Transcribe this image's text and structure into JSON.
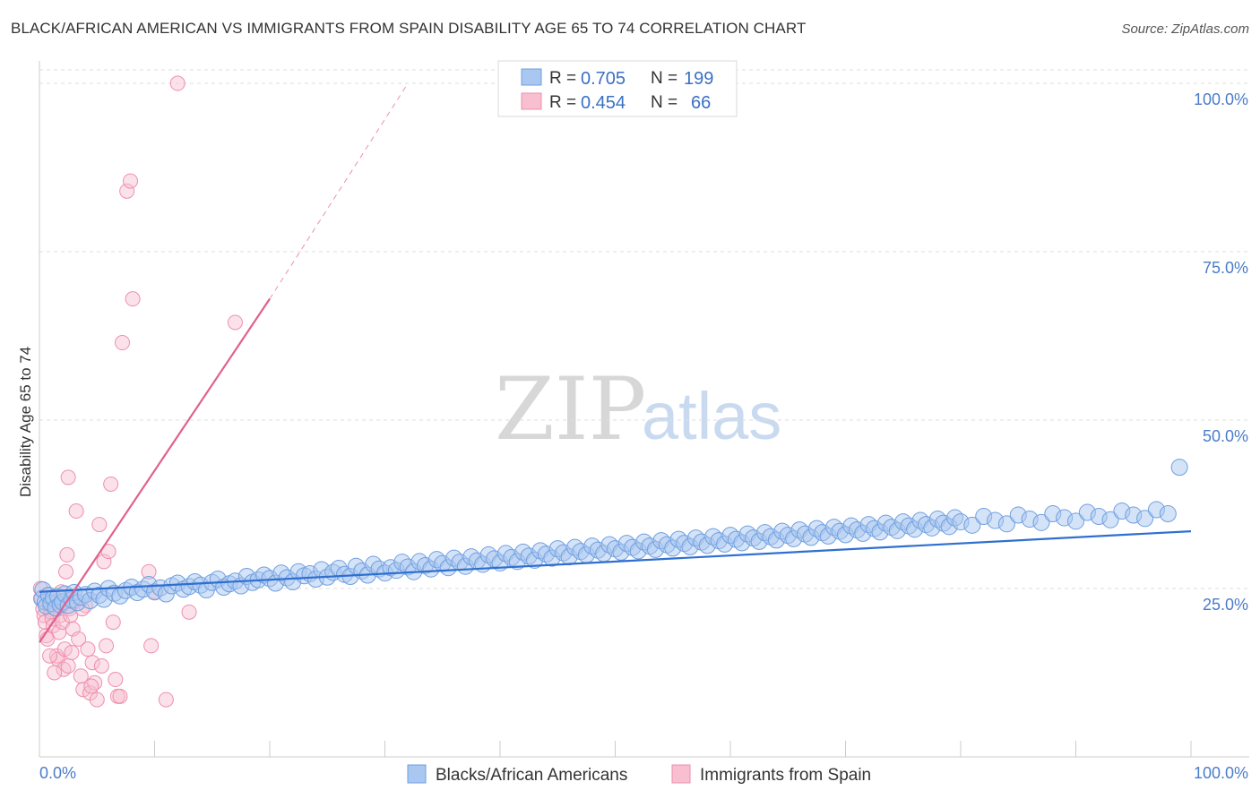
{
  "header": {
    "title": "BLACK/AFRICAN AMERICAN VS IMMIGRANTS FROM SPAIN DISABILITY AGE 65 TO 74 CORRELATION CHART",
    "source": "Source: ZipAtlas.com"
  },
  "watermark": {
    "zip": "ZIP",
    "atlas": "atlas"
  },
  "legend": {
    "r_label": "R =",
    "n_label": "N =",
    "entries": [
      {
        "r": "0.705",
        "n": "199"
      },
      {
        "r": "0.454",
        "n": "66"
      }
    ]
  },
  "bottom_legend": [
    "Blacks/African Americans",
    "Immigrants from Spain"
  ],
  "colors": {
    "blue_fill": "#a9c7f0",
    "blue_stroke": "#6f9fe0",
    "blue_line": "#2f6fd0",
    "pink_fill": "#f7bfd0",
    "pink_stroke": "#ee8fae",
    "pink_line": "#e0608f",
    "tick_text": "#4a7cc9"
  },
  "chart_data": {
    "type": "scatter",
    "title": "BLACK/AFRICAN AMERICAN VS IMMIGRANTS FROM SPAIN DISABILITY AGE 65 TO 74 CORRELATION CHART",
    "xlabel": "",
    "ylabel": "Disability Age 65 to 74",
    "xlim": [
      0,
      100
    ],
    "ylim": [
      0,
      102
    ],
    "x_tick_labels": [
      "0.0%",
      "100.0%"
    ],
    "y_tick_labels": [
      "25.0%",
      "50.0%",
      "75.0%",
      "100.0%"
    ],
    "y_ticks": [
      25,
      50,
      75,
      100
    ],
    "grid": "horizontal dashed",
    "legend_position": "top-center",
    "series": [
      {
        "name": "Blacks/African Americans",
        "r": 0.705,
        "n": 199,
        "trend": {
          "x": [
            0,
            100
          ],
          "y": [
            24.5,
            33.5
          ]
        },
        "points": [
          [
            0.2,
            23.5
          ],
          [
            0.3,
            24.8
          ],
          [
            0.5,
            23
          ],
          [
            0.6,
            22.4
          ],
          [
            0.8,
            24
          ],
          [
            1,
            22.8
          ],
          [
            1.2,
            23.6
          ],
          [
            1.4,
            22.1
          ],
          [
            1.6,
            23.8
          ],
          [
            1.8,
            22.6
          ],
          [
            2,
            23
          ],
          [
            2.2,
            24.2
          ],
          [
            2.5,
            22.5
          ],
          [
            2.8,
            23.3
          ],
          [
            3,
            24.4
          ],
          [
            3.3,
            22.9
          ],
          [
            3.6,
            23.7
          ],
          [
            4,
            24.1
          ],
          [
            4.4,
            23.2
          ],
          [
            4.8,
            24.6
          ],
          [
            5.2,
            24
          ],
          [
            5.6,
            23.4
          ],
          [
            6,
            25
          ],
          [
            6.5,
            24.3
          ],
          [
            7,
            23.9
          ],
          [
            7.5,
            24.7
          ],
          [
            8,
            25.2
          ],
          [
            8.5,
            24.4
          ],
          [
            9,
            24.9
          ],
          [
            9.5,
            25.6
          ],
          [
            10,
            24.5
          ],
          [
            10.5,
            25.1
          ],
          [
            11,
            24.2
          ],
          [
            11.5,
            25.4
          ],
          [
            12,
            25.8
          ],
          [
            12.5,
            24.9
          ],
          [
            13,
            25.3
          ],
          [
            13.5,
            26
          ],
          [
            14,
            25.5
          ],
          [
            14.5,
            24.8
          ],
          [
            15,
            25.9
          ],
          [
            15.5,
            26.4
          ],
          [
            16,
            25.2
          ],
          [
            16.5,
            25.7
          ],
          [
            17,
            26.1
          ],
          [
            17.5,
            25.4
          ],
          [
            18,
            26.8
          ],
          [
            18.5,
            25.9
          ],
          [
            19,
            26.3
          ],
          [
            19.5,
            27
          ],
          [
            20,
            26.5
          ],
          [
            20.5,
            25.8
          ],
          [
            21,
            27.3
          ],
          [
            21.5,
            26.6
          ],
          [
            22,
            26
          ],
          [
            22.5,
            27.5
          ],
          [
            23,
            26.9
          ],
          [
            23.5,
            27.2
          ],
          [
            24,
            26.4
          ],
          [
            24.5,
            27.8
          ],
          [
            25,
            26.7
          ],
          [
            25.5,
            27.4
          ],
          [
            26,
            28
          ],
          [
            26.5,
            27.1
          ],
          [
            27,
            26.8
          ],
          [
            27.5,
            28.3
          ],
          [
            28,
            27.6
          ],
          [
            28.5,
            27
          ],
          [
            29,
            28.6
          ],
          [
            29.5,
            27.9
          ],
          [
            30,
            27.3
          ],
          [
            30.5,
            28.1
          ],
          [
            31,
            27.7
          ],
          [
            31.5,
            28.9
          ],
          [
            32,
            28.2
          ],
          [
            32.5,
            27.5
          ],
          [
            33,
            29
          ],
          [
            33.5,
            28.4
          ],
          [
            34,
            27.9
          ],
          [
            34.5,
            29.3
          ],
          [
            35,
            28.7
          ],
          [
            35.5,
            28.1
          ],
          [
            36,
            29.5
          ],
          [
            36.5,
            28.9
          ],
          [
            37,
            28.3
          ],
          [
            37.5,
            29.7
          ],
          [
            38,
            29.1
          ],
          [
            38.5,
            28.6
          ],
          [
            39,
            30
          ],
          [
            39.5,
            29.4
          ],
          [
            40,
            28.8
          ],
          [
            40.5,
            30.2
          ],
          [
            41,
            29.6
          ],
          [
            41.5,
            29
          ],
          [
            42,
            30.4
          ],
          [
            42.5,
            29.8
          ],
          [
            43,
            29.2
          ],
          [
            43.5,
            30.6
          ],
          [
            44,
            30.1
          ],
          [
            44.5,
            29.5
          ],
          [
            45,
            30.9
          ],
          [
            45.5,
            30.3
          ],
          [
            46,
            29.7
          ],
          [
            46.5,
            31.1
          ],
          [
            47,
            30.5
          ],
          [
            47.5,
            30
          ],
          [
            48,
            31.3
          ],
          [
            48.5,
            30.7
          ],
          [
            49,
            30.2
          ],
          [
            49.5,
            31.5
          ],
          [
            50,
            30.9
          ],
          [
            50.5,
            30.4
          ],
          [
            51,
            31.7
          ],
          [
            51.5,
            31.1
          ],
          [
            52,
            30.6
          ],
          [
            52.5,
            31.9
          ],
          [
            53,
            31.3
          ],
          [
            53.5,
            30.8
          ],
          [
            54,
            32.1
          ],
          [
            54.5,
            31.5
          ],
          [
            55,
            31
          ],
          [
            55.5,
            32.3
          ],
          [
            56,
            31.7
          ],
          [
            56.5,
            31.2
          ],
          [
            57,
            32.5
          ],
          [
            57.5,
            31.9
          ],
          [
            58,
            31.4
          ],
          [
            58.5,
            32.7
          ],
          [
            59,
            32.1
          ],
          [
            59.5,
            31.6
          ],
          [
            60,
            32.9
          ],
          [
            60.5,
            32.3
          ],
          [
            61,
            31.8
          ],
          [
            61.5,
            33.1
          ],
          [
            62,
            32.5
          ],
          [
            62.5,
            32
          ],
          [
            63,
            33.3
          ],
          [
            63.5,
            32.7
          ],
          [
            64,
            32.2
          ],
          [
            64.5,
            33.5
          ],
          [
            65,
            32.9
          ],
          [
            65.5,
            32.4
          ],
          [
            66,
            33.7
          ],
          [
            66.5,
            33.1
          ],
          [
            67,
            32.6
          ],
          [
            67.5,
            33.9
          ],
          [
            68,
            33.3
          ],
          [
            68.5,
            32.8
          ],
          [
            69,
            34.1
          ],
          [
            69.5,
            33.5
          ],
          [
            70,
            33
          ],
          [
            70.5,
            34.3
          ],
          [
            71,
            33.7
          ],
          [
            71.5,
            33.2
          ],
          [
            72,
            34.5
          ],
          [
            72.5,
            33.9
          ],
          [
            73,
            33.4
          ],
          [
            73.5,
            34.7
          ],
          [
            74,
            34.1
          ],
          [
            74.5,
            33.6
          ],
          [
            75,
            34.9
          ],
          [
            75.5,
            34.3
          ],
          [
            76,
            33.8
          ],
          [
            76.5,
            35.1
          ],
          [
            77,
            34.5
          ],
          [
            77.5,
            34
          ],
          [
            78,
            35.3
          ],
          [
            78.5,
            34.7
          ],
          [
            79,
            34.2
          ],
          [
            79.5,
            35.5
          ],
          [
            80,
            34.9
          ],
          [
            81,
            34.4
          ],
          [
            82,
            35.7
          ],
          [
            83,
            35.1
          ],
          [
            84,
            34.6
          ],
          [
            85,
            35.9
          ],
          [
            86,
            35.3
          ],
          [
            87,
            34.8
          ],
          [
            88,
            36.1
          ],
          [
            89,
            35.5
          ],
          [
            90,
            35
          ],
          [
            91,
            36.3
          ],
          [
            92,
            35.7
          ],
          [
            93,
            35.2
          ],
          [
            94,
            36.5
          ],
          [
            95,
            35.9
          ],
          [
            96,
            35.4
          ],
          [
            97,
            36.7
          ],
          [
            98,
            36.1
          ],
          [
            99,
            43
          ]
        ]
      },
      {
        "name": "Immigrants from Spain",
        "r": 0.454,
        "n": 66,
        "trend": {
          "x": [
            0,
            20
          ],
          "y": [
            17,
            68
          ]
        },
        "trend_dashed": {
          "x": [
            20,
            32
          ],
          "y": [
            68,
            100
          ]
        },
        "points": [
          [
            0.1,
            25
          ],
          [
            0.2,
            23.5
          ],
          [
            0.3,
            22
          ],
          [
            0.4,
            21
          ],
          [
            0.5,
            20
          ],
          [
            0.6,
            18
          ],
          [
            0.7,
            17.5
          ],
          [
            0.8,
            24
          ],
          [
            0.9,
            22.5
          ],
          [
            1,
            21.5
          ],
          [
            1.1,
            20.5
          ],
          [
            1.2,
            19.5
          ],
          [
            1.3,
            23
          ],
          [
            1.4,
            22
          ],
          [
            1.5,
            15
          ],
          [
            1.6,
            14.5
          ],
          [
            1.7,
            18.5
          ],
          [
            1.8,
            21
          ],
          [
            1.9,
            24.5
          ],
          [
            2,
            20
          ],
          [
            2.1,
            13
          ],
          [
            2.2,
            16
          ],
          [
            2.3,
            27.5
          ],
          [
            2.4,
            30
          ],
          [
            2.5,
            41.5
          ],
          [
            2.6,
            22
          ],
          [
            2.7,
            21
          ],
          [
            2.8,
            15.5
          ],
          [
            2.9,
            19
          ],
          [
            3,
            23
          ],
          [
            3.2,
            36.5
          ],
          [
            3.4,
            17.5
          ],
          [
            3.6,
            12
          ],
          [
            3.8,
            10
          ],
          [
            4,
            22.5
          ],
          [
            4.2,
            16
          ],
          [
            4.4,
            9.5
          ],
          [
            4.6,
            14
          ],
          [
            4.8,
            11
          ],
          [
            5,
            8.5
          ],
          [
            5.2,
            34.5
          ],
          [
            5.4,
            13.5
          ],
          [
            5.6,
            29
          ],
          [
            5.8,
            16.5
          ],
          [
            6,
            30.5
          ],
          [
            6.2,
            40.5
          ],
          [
            6.4,
            20
          ],
          [
            6.6,
            11.5
          ],
          [
            6.8,
            9
          ],
          [
            7,
            9
          ],
          [
            7.2,
            61.5
          ],
          [
            7.6,
            84
          ],
          [
            7.9,
            85.5
          ],
          [
            8.1,
            68
          ],
          [
            9.5,
            27.5
          ],
          [
            9.7,
            16.5
          ],
          [
            10,
            24.5
          ],
          [
            11,
            8.5
          ],
          [
            12,
            100
          ],
          [
            13,
            21.5
          ],
          [
            17,
            64.5
          ],
          [
            1.3,
            12.5
          ],
          [
            0.9,
            15
          ],
          [
            2.5,
            13.5
          ],
          [
            3.7,
            22
          ],
          [
            4.5,
            10.5
          ]
        ]
      }
    ]
  }
}
